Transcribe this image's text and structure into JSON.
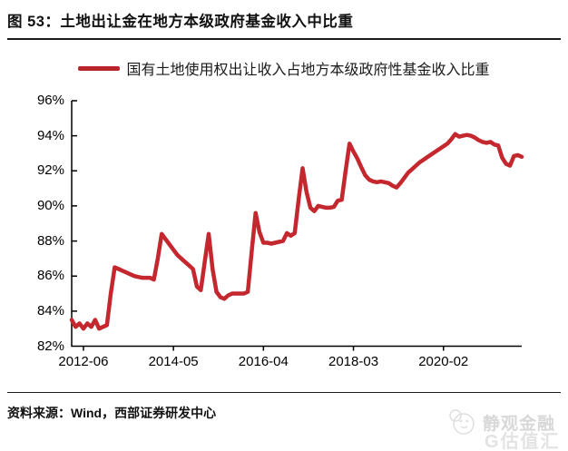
{
  "figure": {
    "title": "图 53：土地出让金在地方本级政府基金收入中比重",
    "source_label": "资料来源：Wind，西部证券研发中心",
    "watermark": {
      "primary": "静观金融",
      "secondary": "G估值汇"
    }
  },
  "chart_data": {
    "type": "line",
    "title": "土地出让金在地方本级政府基金收入中比重",
    "legend": [
      "国有土地使用权出让收入占地方本级政府性基金收入比重"
    ],
    "legend_position": "top",
    "line_color": "#c4272e",
    "grid": false,
    "unit": "%",
    "ylim": [
      82,
      96
    ],
    "y_ticks": [
      "96%",
      "94%",
      "92%",
      "90%",
      "88%",
      "86%",
      "84%",
      "82%"
    ],
    "x_tick_labels": [
      "2012-06",
      "2014-05",
      "2016-04",
      "2018-03",
      "2020-02"
    ],
    "points": [
      [
        "2012-03",
        83.5
      ],
      [
        "2012-04",
        83.1
      ],
      [
        "2012-05",
        83.3
      ],
      [
        "2012-06",
        83.0
      ],
      [
        "2012-07",
        83.3
      ],
      [
        "2012-08",
        83.1
      ],
      [
        "2012-09",
        83.5
      ],
      [
        "2012-10",
        83.0
      ],
      [
        "2012-11",
        83.1
      ],
      [
        "2012-12",
        83.2
      ],
      [
        "2013-01",
        85.0
      ],
      [
        "2013-02",
        86.5
      ],
      [
        "2013-03",
        86.4
      ],
      [
        "2013-04",
        86.3
      ],
      [
        "2013-05",
        86.2
      ],
      [
        "2013-06",
        86.1
      ],
      [
        "2013-07",
        86.0
      ],
      [
        "2013-08",
        85.95
      ],
      [
        "2013-09",
        85.9
      ],
      [
        "2013-10",
        85.9
      ],
      [
        "2013-11",
        85.9
      ],
      [
        "2013-12",
        85.8
      ],
      [
        "2014-01",
        87.0
      ],
      [
        "2014-02",
        88.4
      ],
      [
        "2014-03",
        88.1
      ],
      [
        "2014-04",
        87.8
      ],
      [
        "2014-05",
        87.5
      ],
      [
        "2014-06",
        87.2
      ],
      [
        "2014-07",
        87.0
      ],
      [
        "2014-08",
        86.8
      ],
      [
        "2014-09",
        86.6
      ],
      [
        "2014-10",
        86.4
      ],
      [
        "2014-11",
        85.4
      ],
      [
        "2014-12",
        85.2
      ],
      [
        "2015-01",
        86.8
      ],
      [
        "2015-02",
        88.4
      ],
      [
        "2015-03",
        86.4
      ],
      [
        "2015-04",
        85.1
      ],
      [
        "2015-05",
        84.8
      ],
      [
        "2015-06",
        84.7
      ],
      [
        "2015-07",
        84.9
      ],
      [
        "2015-08",
        85.0
      ],
      [
        "2015-09",
        85.0
      ],
      [
        "2015-10",
        85.0
      ],
      [
        "2015-11",
        85.0
      ],
      [
        "2015-12",
        85.1
      ],
      [
        "2016-01",
        87.4
      ],
      [
        "2016-02",
        89.6
      ],
      [
        "2016-03",
        88.5
      ],
      [
        "2016-04",
        87.9
      ],
      [
        "2016-05",
        87.9
      ],
      [
        "2016-06",
        87.85
      ],
      [
        "2016-07",
        87.9
      ],
      [
        "2016-08",
        87.95
      ],
      [
        "2016-09",
        88.0
      ],
      [
        "2016-10",
        88.45
      ],
      [
        "2016-11",
        88.3
      ],
      [
        "2016-12",
        88.45
      ],
      [
        "2017-01",
        90.4
      ],
      [
        "2017-02",
        92.15
      ],
      [
        "2017-03",
        90.8
      ],
      [
        "2017-04",
        89.9
      ],
      [
        "2017-05",
        89.7
      ],
      [
        "2017-06",
        90.0
      ],
      [
        "2017-07",
        89.95
      ],
      [
        "2017-08",
        89.9
      ],
      [
        "2017-09",
        89.9
      ],
      [
        "2017-10",
        89.95
      ],
      [
        "2017-11",
        90.3
      ],
      [
        "2017-12",
        90.35
      ],
      [
        "2018-01",
        92.0
      ],
      [
        "2018-02",
        93.55
      ],
      [
        "2018-03",
        93.1
      ],
      [
        "2018-04",
        92.7
      ],
      [
        "2018-05",
        92.2
      ],
      [
        "2018-06",
        91.75
      ],
      [
        "2018-07",
        91.5
      ],
      [
        "2018-08",
        91.4
      ],
      [
        "2018-09",
        91.35
      ],
      [
        "2018-10",
        91.4
      ],
      [
        "2018-11",
        91.35
      ],
      [
        "2018-12",
        91.3
      ],
      [
        "2019-01",
        91.15
      ],
      [
        "2019-02",
        91.05
      ],
      [
        "2019-03",
        91.3
      ],
      [
        "2019-04",
        91.6
      ],
      [
        "2019-05",
        91.9
      ],
      [
        "2019-06",
        92.1
      ],
      [
        "2019-07",
        92.3
      ],
      [
        "2019-08",
        92.5
      ],
      [
        "2019-09",
        92.65
      ],
      [
        "2019-10",
        92.8
      ],
      [
        "2019-11",
        92.95
      ],
      [
        "2019-12",
        93.1
      ],
      [
        "2020-01",
        93.25
      ],
      [
        "2020-02",
        93.4
      ],
      [
        "2020-03",
        93.55
      ],
      [
        "2020-04",
        93.8
      ],
      [
        "2020-05",
        94.1
      ],
      [
        "2020-06",
        93.95
      ],
      [
        "2020-07",
        94.0
      ],
      [
        "2020-08",
        94.05
      ],
      [
        "2020-09",
        94.0
      ],
      [
        "2020-10",
        93.9
      ],
      [
        "2020-11",
        93.75
      ],
      [
        "2020-12",
        93.65
      ],
      [
        "2021-01",
        93.6
      ],
      [
        "2021-02",
        93.65
      ],
      [
        "2021-03",
        93.5
      ],
      [
        "2021-04",
        93.45
      ],
      [
        "2021-05",
        92.75
      ],
      [
        "2021-06",
        92.4
      ],
      [
        "2021-07",
        92.3
      ],
      [
        "2021-08",
        92.85
      ],
      [
        "2021-09",
        92.9
      ],
      [
        "2021-10",
        92.8
      ]
    ]
  }
}
